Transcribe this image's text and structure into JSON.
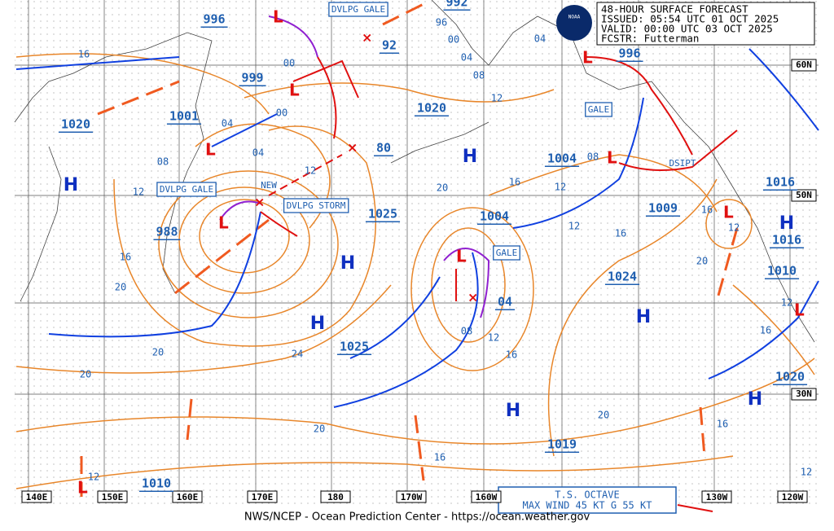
{
  "header": {
    "title": "48-HOUR SURFACE FORECAST",
    "issued": "ISSUED: 05:54 UTC 01 OCT 2025",
    "valid": "VALID:  00:00 UTC 03 OCT 2025",
    "forecaster": "FCSTR:  Futterman"
  },
  "logo": "NOAA",
  "footer": "NWS/NCEP - Ocean Prediction Center - https://ocean.weather.gov",
  "longitudes": [
    "140E",
    "150E",
    "160E",
    "170E",
    "180",
    "170W",
    "160W",
    "130W",
    "120W"
  ],
  "latitudes": [
    "60N",
    "50N",
    "30N"
  ],
  "pressures": [
    "996",
    "999",
    "1001",
    "1020",
    "988",
    "1025",
    "1025",
    "1020",
    "80",
    "92",
    "1004",
    "1004",
    "1009",
    "1024",
    "1019",
    "1010",
    "996",
    "1016",
    "1016",
    "1010",
    "1020",
    "04",
    "992"
  ],
  "highs": [
    "H",
    "H",
    "H",
    "H",
    "H",
    "H",
    "H",
    "H"
  ],
  "isobar_labels": [
    "16",
    "00",
    "00",
    "04",
    "04",
    "08",
    "12",
    "12",
    "16",
    "20",
    "20",
    "24",
    "20",
    "20",
    "16",
    "12",
    "20",
    "16",
    "12",
    "12",
    "16",
    "20",
    "16",
    "12",
    "08",
    "08",
    "12",
    "16",
    "20",
    "16",
    "16",
    "12",
    "12",
    "04",
    "04",
    "08",
    "12",
    "00",
    "96"
  ],
  "boxed": [
    "DVLPG GALE",
    "DVLPG GALE",
    "DVLPG STORM",
    "GALE",
    "GALE"
  ],
  "notes": [
    "NEW",
    "DSIPT"
  ],
  "storm": {
    "name": "T.S. OCTAVE",
    "wind": "MAX WIND 45 KT G 55 KT"
  }
}
